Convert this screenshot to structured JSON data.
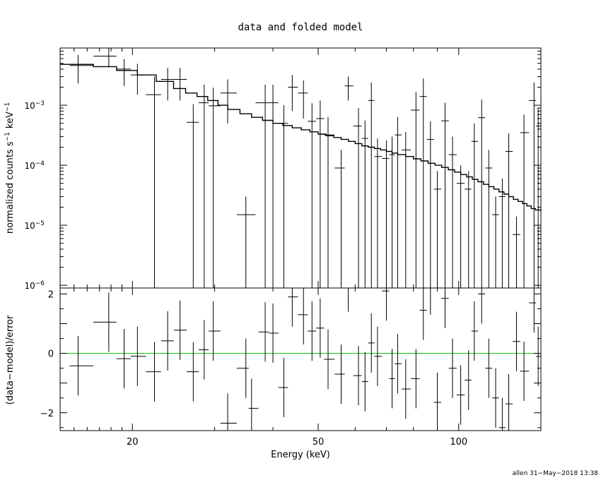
{
  "chart_data": [
    {
      "type": "scatter",
      "title": "data and folded model",
      "ylabel": "normalized counts s",
      "ylabel_unit": "keV",
      "ylabel_exp": "−1",
      "xlabel": "Energy (keV)",
      "xscale": "log",
      "yscale": "log",
      "xlim": [
        14,
        150
      ],
      "ylim": [
        9e-07,
        0.009
      ],
      "y_tick_labels": [
        "10",
        "10",
        "10",
        "10"
      ],
      "y_tick_exps": [
        "−3",
        "−4",
        "−5",
        "−6"
      ],
      "y_tick_values": [
        0.001,
        0.0001,
        1e-05,
        1e-06
      ],
      "series": [
        {
          "role": "data",
          "points": [
            [
              15.3,
              0.0046,
              0.0023
            ],
            [
              17.8,
              0.0066,
              0.0023
            ],
            [
              19.2,
              0.004,
              0.0019
            ],
            [
              20.5,
              0.0032,
              0.0017
            ],
            [
              22.3,
              0.0015,
              0.0015
            ],
            [
              23.8,
              0.0027,
              0.0015
            ],
            [
              25.3,
              0.0027,
              0.0015
            ],
            [
              27.0,
              0.00052,
              0.00052
            ],
            [
              28.5,
              0.0011,
              0.0011
            ],
            [
              29.8,
              0.00098,
              0.00098
            ],
            [
              32.0,
              0.0016,
              0.0011
            ],
            [
              35.0,
              1.5e-05,
              1.5e-05
            ],
            [
              38.5,
              0.0011,
              0.0011
            ],
            [
              40.0,
              0.0011,
              0.0011
            ],
            [
              42.2,
              0.0005,
              0.0005
            ],
            [
              44.0,
              0.002,
              0.0012
            ],
            [
              46.5,
              0.0016,
              0.001
            ],
            [
              48.5,
              0.00054,
              0.00054
            ],
            [
              50.5,
              0.0006,
              0.0006
            ],
            [
              52.5,
              0.00032,
              0.00032
            ],
            [
              56.0,
              9e-05,
              9e-05
            ],
            [
              58.0,
              0.0021,
              0.0009
            ],
            [
              61.0,
              0.00045,
              0.00045
            ],
            [
              63.0,
              0.00028,
              0.00028
            ],
            [
              65.0,
              0.0012,
              0.0012
            ],
            [
              67.0,
              0.00014,
              0.00014
            ],
            [
              70.0,
              0.00013,
              0.00013
            ],
            [
              72.0,
              0.00015,
              0.00015
            ],
            [
              74.0,
              0.00032,
              0.00032
            ],
            [
              77.0,
              0.00018,
              0.00018
            ],
            [
              81.0,
              0.00083,
              0.00083
            ],
            [
              84.0,
              0.0014,
              0.0014
            ],
            [
              87.0,
              0.00027,
              0.00027
            ],
            [
              90.0,
              4e-05,
              4e-05
            ],
            [
              93.5,
              0.00055,
              0.00055
            ],
            [
              97.0,
              0.00015,
              0.00015
            ],
            [
              101.0,
              5e-05,
              5e-05
            ],
            [
              105.0,
              4e-05,
              4e-05
            ],
            [
              108.0,
              0.00025,
              0.00025
            ],
            [
              112.0,
              0.00062,
              0.00062
            ],
            [
              116.0,
              9e-05,
              9e-05
            ],
            [
              120.0,
              1.5e-05,
              1.5e-05
            ],
            [
              124.0,
              3e-05,
              3e-05
            ],
            [
              128.0,
              0.00017,
              0.00017
            ],
            [
              133.0,
              7e-06,
              7e-06
            ],
            [
              138.0,
              0.00035,
              0.00035
            ],
            [
              145.0,
              0.0012,
              0.0012
            ],
            [
              148.0,
              0.00045,
              0.00045
            ]
          ]
        },
        {
          "role": "folded-model",
          "x": [
            14.0,
            16.5,
            18.5,
            20.5,
            22.5,
            24.5,
            26.0,
            27.5,
            29.0,
            30.5,
            32.0,
            34.0,
            36.0,
            38.0,
            40.0,
            42.0,
            44.0,
            46.0,
            48.0,
            50.0,
            52.0,
            54.0,
            56.0,
            58.0,
            60.0,
            62.0,
            64.0,
            66.0,
            68.0,
            70.0,
            72.0,
            74.0,
            77.0,
            80.0,
            83.0,
            86.0,
            89.0,
            92.0,
            95.0,
            98.0,
            101.0,
            104.0,
            107.0,
            110.0,
            113.0,
            116.0,
            119.0,
            122.0,
            125.0,
            128.0,
            131.0,
            134.0,
            137.0,
            140.0,
            143.0,
            146.0,
            150.0
          ],
          "y": [
            0.0048,
            0.0044,
            0.0038,
            0.0032,
            0.0025,
            0.0019,
            0.0016,
            0.0014,
            0.0012,
            0.001,
            0.00085,
            0.00072,
            0.00063,
            0.00056,
            0.0005,
            0.00046,
            0.00042,
            0.00039,
            0.00036,
            0.00033,
            0.00031,
            0.00029,
            0.00027,
            0.00025,
            0.00023,
            0.00021,
            0.0002,
            0.00019,
            0.00018,
            0.00017,
            0.00016,
            0.00015,
            0.00014,
            0.000128,
            0.000118,
            0.000108,
            0.0001,
            9.2e-05,
            8.4e-05,
            7.7e-05,
            7e-05,
            6.4e-05,
            5.8e-05,
            5.3e-05,
            4.8e-05,
            4.4e-05,
            4e-05,
            3.6e-05,
            3.3e-05,
            3e-05,
            2.7e-05,
            2.5e-05,
            2.3e-05,
            2.1e-05,
            1.9e-05,
            1.8e-05,
            1.7e-05
          ]
        }
      ]
    },
    {
      "type": "scatter",
      "ylabel": "(data−model)/error",
      "xlabel": "Energy (keV)",
      "xscale": "log",
      "xlim": [
        14,
        150
      ],
      "ylim": [
        -2.6,
        2.2
      ],
      "y_ticks": [
        2,
        0,
        -2
      ],
      "y_tick_labels": [
        "2",
        "0",
        "−2"
      ],
      "x_ticks": [
        20,
        50,
        100
      ],
      "x_tick_labels": [
        "20",
        "50",
        "100"
      ],
      "zero_line_color": "#00c000",
      "points": [
        [
          15.3,
          -0.42,
          1.0
        ],
        [
          17.8,
          1.05,
          1.0
        ],
        [
          19.2,
          -0.18,
          1.0
        ],
        [
          20.5,
          -0.1,
          1.0
        ],
        [
          22.3,
          -0.62,
          1.0
        ],
        [
          23.8,
          0.42,
          1.0
        ],
        [
          25.3,
          0.78,
          1.0
        ],
        [
          27.0,
          -0.62,
          1.0
        ],
        [
          28.5,
          0.12,
          1.0
        ],
        [
          29.8,
          0.75,
          1.0
        ],
        [
          32.0,
          -2.35,
          1.0
        ],
        [
          35.0,
          -0.5,
          1.0
        ],
        [
          36.0,
          -1.85,
          1.0
        ],
        [
          38.5,
          0.72,
          1.0
        ],
        [
          40.0,
          0.68,
          1.0
        ],
        [
          42.2,
          -1.15,
          1.0
        ],
        [
          44.0,
          1.9,
          1.0
        ],
        [
          46.5,
          1.3,
          1.0
        ],
        [
          48.5,
          0.75,
          1.0
        ],
        [
          50.5,
          0.85,
          1.0
        ],
        [
          52.5,
          -0.2,
          1.0
        ],
        [
          56.0,
          -0.7,
          1.0
        ],
        [
          58.0,
          2.4,
          1.0
        ],
        [
          61.0,
          -0.75,
          1.0
        ],
        [
          63.0,
          -0.95,
          1.0
        ],
        [
          65.0,
          0.35,
          1.0
        ],
        [
          67.0,
          -0.1,
          1.0
        ],
        [
          70.0,
          2.1,
          1.0
        ],
        [
          72.0,
          -0.85,
          1.0
        ],
        [
          74.0,
          -0.35,
          1.0
        ],
        [
          77.0,
          -1.2,
          1.0
        ],
        [
          81.0,
          -0.85,
          1.0
        ],
        [
          84.0,
          1.45,
          1.0
        ],
        [
          87.0,
          2.3,
          1.0
        ],
        [
          90.0,
          -1.65,
          1.0
        ],
        [
          93.5,
          1.85,
          1.0
        ],
        [
          97.0,
          -0.5,
          1.0
        ],
        [
          101.0,
          -1.4,
          1.0
        ],
        [
          105.0,
          -0.9,
          1.0
        ],
        [
          108.0,
          0.75,
          1.0
        ],
        [
          112.0,
          2.0,
          1.0
        ],
        [
          116.0,
          -0.5,
          1.0
        ],
        [
          120.0,
          -1.5,
          1.0
        ],
        [
          124.0,
          -2.5,
          1.0
        ],
        [
          128.0,
          -1.7,
          1.0
        ],
        [
          133.0,
          0.4,
          1.0
        ],
        [
          138.0,
          -0.6,
          1.0
        ],
        [
          145.0,
          1.7,
          1.0
        ],
        [
          148.0,
          -0.1,
          1.0
        ]
      ]
    }
  ],
  "footer": {
    "stamp": "allen 31−May−2018 13:38"
  }
}
